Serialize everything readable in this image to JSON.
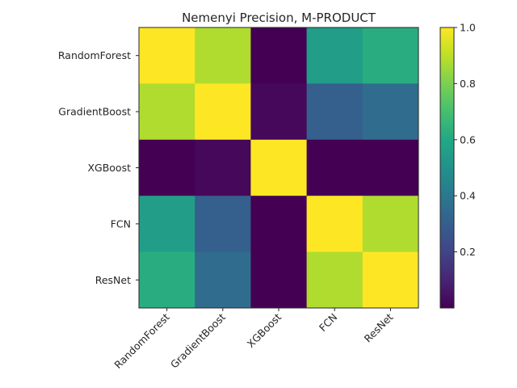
{
  "chart_data": {
    "type": "heatmap",
    "title": "Nemenyi Precision, M-PRODUCT",
    "row_labels": [
      "RandomForest",
      "GradientBoost",
      "XGBoost",
      "FCN",
      "ResNet"
    ],
    "col_labels": [
      "RandomForest",
      "GradientBoost",
      "XGBoost",
      "FCN",
      "ResNet"
    ],
    "values": [
      [
        1.0,
        0.88,
        0.0,
        0.55,
        0.62
      ],
      [
        0.88,
        1.0,
        0.02,
        0.3,
        0.35
      ],
      [
        0.0,
        0.02,
        1.0,
        0.0,
        0.0
      ],
      [
        0.55,
        0.3,
        0.0,
        1.0,
        0.88
      ],
      [
        0.62,
        0.35,
        0.0,
        0.88,
        1.0
      ]
    ],
    "colormap": "viridis",
    "vmin": 0.0,
    "vmax": 1.0,
    "colorbar_ticks": [
      0.2,
      0.4,
      0.6,
      0.8,
      1.0
    ],
    "colorbar_tick_labels": [
      "0.2",
      "0.4",
      "0.6",
      "0.8",
      "1.0"
    ],
    "xlabel": "",
    "ylabel": ""
  }
}
